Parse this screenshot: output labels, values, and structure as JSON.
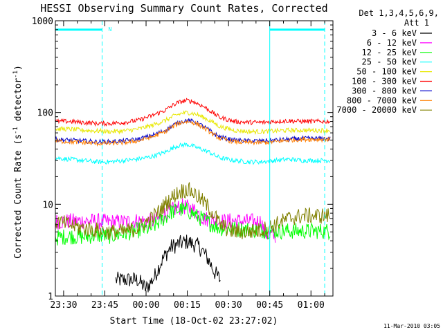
{
  "chart_data": {
    "type": "line",
    "title": "HESSI Observing Summary Count Rates, Corrected",
    "xlabel": "Start Time (18-Oct-02 23:27:02)",
    "ylabel": "Corrected Count Rate (s",
    "ylabel_sup1": "-1",
    "ylabel_mid": " detector",
    "ylabel_sup2": "-1",
    "ylabel_end": ")",
    "x_unit": "minutes since 23:27:02",
    "xlim": [
      0,
      101
    ],
    "ylim": [
      1,
      1000
    ],
    "y_scale": "log",
    "x_ticks": [
      {
        "label": "23:30",
        "t": 3
      },
      {
        "label": "23:45",
        "t": 18
      },
      {
        "label": "00:00",
        "t": 33
      },
      {
        "label": "00:15",
        "t": 48
      },
      {
        "label": "00:30",
        "t": 63
      },
      {
        "label": "00:45",
        "t": 78
      },
      {
        "label": "01:00",
        "t": 93
      }
    ],
    "y_ticks": [
      {
        "label": "1",
        "v": 1
      },
      {
        "label": "10",
        "v": 10
      },
      {
        "label": "100",
        "v": 100
      },
      {
        "label": "1000",
        "v": 1000
      }
    ],
    "legend": {
      "header1": "Det 1,3,4,5,6,9,",
      "header2": "Att 1",
      "placement": "right-outside"
    },
    "series": [
      {
        "name": "3 - 6 keV",
        "color": "#000000",
        "x": [
          22,
          30,
          33,
          36,
          38,
          40,
          42,
          44,
          46,
          48,
          50,
          52,
          54,
          56,
          58,
          60
        ],
        "y": [
          1.5,
          1.5,
          1.2,
          1.6,
          2.2,
          2.8,
          3.4,
          3.6,
          3.8,
          3.9,
          3.7,
          3.5,
          3.0,
          2.4,
          1.8,
          1.5
        ]
      },
      {
        "name": "6 - 12 keV",
        "color": "#ff00ff",
        "x": [
          0,
          5,
          10,
          15,
          20,
          25,
          30,
          35,
          38,
          40,
          42,
          44,
          46,
          48,
          50,
          52,
          54,
          56,
          58,
          60,
          65,
          70,
          75,
          76,
          78,
          80
        ],
        "y": [
          6.5,
          6.5,
          6.6,
          6.5,
          6.4,
          6.4,
          6.6,
          6.5,
          7.0,
          8.0,
          8.5,
          9.0,
          9.5,
          9.2,
          8.8,
          8.0,
          7.0,
          6.8,
          6.6,
          6.5,
          6.6,
          6.5,
          6.5,
          4.8,
          4.6,
          4.5
        ]
      },
      {
        "name": "12 - 25 keV",
        "color": "#00ff00",
        "x": [
          0,
          5,
          10,
          15,
          20,
          25,
          30,
          35,
          38,
          40,
          42,
          44,
          46,
          48,
          50,
          52,
          54,
          56,
          58,
          60,
          65,
          70,
          75,
          80,
          85,
          90,
          95,
          100
        ],
        "y": [
          4.3,
          4.5,
          4.4,
          4.6,
          4.5,
          4.8,
          5.2,
          5.5,
          6.5,
          7.2,
          8.2,
          8.6,
          8.8,
          8.4,
          8.0,
          7.2,
          6.8,
          6.3,
          5.8,
          5.5,
          5.4,
          5.3,
          5.2,
          5.1,
          5.1,
          5.1,
          5.1,
          5.1
        ]
      },
      {
        "name": "25 - 50 keV",
        "color": "#00ffff",
        "x": [
          0,
          5,
          10,
          15,
          20,
          25,
          30,
          35,
          40,
          42,
          44,
          46,
          48,
          50,
          52,
          54,
          56,
          58,
          60,
          65,
          70,
          75,
          80,
          85,
          90,
          95,
          100
        ],
        "y": [
          32,
          31,
          30,
          29,
          29,
          30,
          31,
          33,
          37,
          40,
          43,
          44,
          45,
          43,
          41,
          39,
          37,
          34,
          32,
          30,
          29,
          29,
          30,
          31,
          30,
          30,
          30
        ]
      },
      {
        "name": "50 - 100 keV",
        "color": "#e8e800",
        "x": [
          0,
          5,
          10,
          15,
          20,
          25,
          30,
          35,
          40,
          42,
          44,
          46,
          48,
          50,
          52,
          54,
          56,
          58,
          60,
          65,
          70,
          75,
          80,
          85,
          90,
          95,
          100
        ],
        "y": [
          66,
          66,
          64,
          63,
          62,
          63,
          66,
          72,
          82,
          88,
          94,
          98,
          100,
          98,
          94,
          88,
          82,
          76,
          70,
          64,
          62,
          62,
          63,
          64,
          64,
          64,
          64
        ]
      },
      {
        "name": "100 - 300 keV",
        "color": "#ff0000",
        "x": [
          0,
          5,
          10,
          15,
          20,
          25,
          30,
          35,
          40,
          42,
          44,
          46,
          48,
          50,
          52,
          54,
          56,
          58,
          60,
          65,
          70,
          75,
          80,
          85,
          90,
          95,
          100
        ],
        "y": [
          80,
          80,
          78,
          76,
          76,
          78,
          82,
          92,
          106,
          116,
          126,
          132,
          135,
          132,
          124,
          116,
          106,
          96,
          88,
          80,
          78,
          78,
          80,
          81,
          80,
          80,
          80
        ]
      },
      {
        "name": "300 - 800 keV",
        "color": "#0000cc",
        "x": [
          0,
          5,
          10,
          15,
          20,
          25,
          30,
          35,
          40,
          42,
          44,
          46,
          48,
          50,
          52,
          54,
          56,
          58,
          60,
          65,
          70,
          75,
          80,
          85,
          90,
          95,
          100
        ],
        "y": [
          51,
          50,
          49,
          48,
          48,
          49,
          51,
          56,
          64,
          70,
          76,
          80,
          82,
          80,
          76,
          70,
          64,
          58,
          54,
          50,
          49,
          49,
          50,
          51,
          52,
          52,
          52
        ]
      },
      {
        "name": "800 - 7000 keV",
        "color": "#ff7f00",
        "x": [
          0,
          5,
          10,
          15,
          20,
          25,
          30,
          35,
          40,
          42,
          44,
          46,
          48,
          50,
          52,
          54,
          56,
          58,
          60,
          65,
          70,
          75,
          80,
          85,
          90,
          95,
          100
        ],
        "y": [
          49,
          48,
          47,
          46,
          46,
          47,
          49,
          54,
          62,
          68,
          74,
          78,
          80,
          78,
          74,
          68,
          62,
          56,
          52,
          48,
          47,
          47,
          48,
          50,
          51,
          51,
          51
        ]
      },
      {
        "name": "7000 - 20000 keV",
        "color": "#808000",
        "x": [
          0,
          5,
          10,
          15,
          20,
          25,
          30,
          35,
          38,
          40,
          42,
          44,
          46,
          48,
          50,
          52,
          54,
          56,
          58,
          60,
          62,
          65,
          70,
          75,
          80,
          85,
          90,
          95,
          100
        ],
        "y": [
          6.5,
          6.0,
          5.5,
          5.2,
          5.0,
          5.0,
          5.5,
          7.0,
          8.5,
          10.0,
          11.5,
          13.0,
          14.0,
          14.5,
          13.5,
          12.0,
          10.5,
          9.0,
          7.5,
          6.0,
          5.5,
          5.0,
          5.0,
          5.2,
          6.0,
          7.0,
          7.5,
          7.5,
          7.5
        ]
      }
    ],
    "annotations": {
      "night_bars": [
        {
          "t_start": 0,
          "t_end": 17
        },
        {
          "t_start": 78,
          "t_end": 98
        }
      ],
      "night_level": 800,
      "n_marker_t": 18.5,
      "n_marker_text": "N",
      "solid_vlines": [
        0,
        78
      ],
      "dashed_vlines": [
        17,
        98
      ]
    },
    "grid": false
  },
  "footer": {
    "timestamp": "11-Mar-2010 03:05"
  }
}
